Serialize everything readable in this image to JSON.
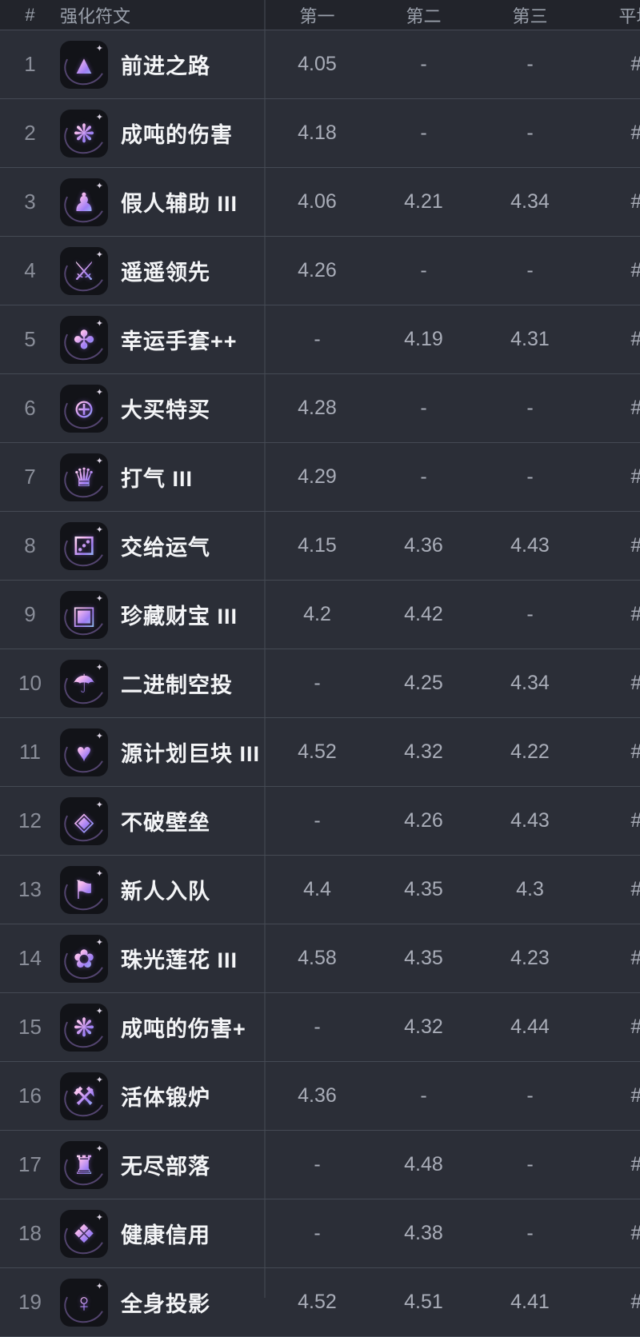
{
  "colors": {
    "background": "#2b2e37",
    "header_background": "#22242b",
    "row_divider": "#454a54",
    "icon_tile": "#121318",
    "name_text": "#f4f5f7",
    "value_text": "#a9adb8",
    "rank_text": "#8a8e99",
    "holo_gradient": [
      "#ffffff",
      "#f3b6ee",
      "#a07ef5",
      "#8fd4f2"
    ]
  },
  "table": {
    "columns": {
      "rank": "#",
      "name": "强化符文",
      "first": "第一",
      "second": "第二",
      "third": "第三",
      "avg": "平均"
    },
    "rows": [
      {
        "rank": "1",
        "name": "前进之路",
        "icon": "arrow-up-circle",
        "glyph": "▲",
        "first": "4.05",
        "second": "-",
        "third": "-",
        "avg": "#"
      },
      {
        "rank": "2",
        "name": "成吨的伤害",
        "icon": "damage-swirl",
        "glyph": "❋",
        "first": "4.18",
        "second": "-",
        "third": "-",
        "avg": "#"
      },
      {
        "rank": "3",
        "name": "假人辅助 III",
        "icon": "training-dummy",
        "glyph": "♟",
        "first": "4.06",
        "second": "4.21",
        "third": "4.34",
        "avg": "#"
      },
      {
        "rank": "4",
        "name": "遥遥领先",
        "icon": "head-start-bag",
        "glyph": "⚔",
        "first": "4.26",
        "second": "-",
        "third": "-",
        "avg": "#"
      },
      {
        "rank": "5",
        "name": "幸运手套++",
        "icon": "lucky-paw",
        "glyph": "✤",
        "first": "-",
        "second": "4.19",
        "third": "4.31",
        "avg": "#"
      },
      {
        "rank": "6",
        "name": "大买特买",
        "icon": "coin-plus",
        "glyph": "⊕",
        "first": "4.28",
        "second": "-",
        "third": "-",
        "avg": "#"
      },
      {
        "rank": "7",
        "name": "打气 III",
        "icon": "crown-burst",
        "glyph": "♛",
        "first": "4.29",
        "second": "-",
        "third": "-",
        "avg": "#"
      },
      {
        "rank": "8",
        "name": "交给运气",
        "icon": "lucky-dice",
        "glyph": "⚂",
        "first": "4.15",
        "second": "4.36",
        "third": "4.43",
        "avg": "#"
      },
      {
        "rank": "9",
        "name": "珍藏财宝 III",
        "icon": "mystery-box",
        "glyph": "▣",
        "first": "4.2",
        "second": "4.42",
        "third": "-",
        "avg": "#"
      },
      {
        "rank": "10",
        "name": "二进制空投",
        "icon": "parachute-drop",
        "glyph": "☂",
        "first": "-",
        "second": "4.25",
        "third": "4.34",
        "avg": "#"
      },
      {
        "rank": "11",
        "name": "源计划巨块 III",
        "icon": "heart-cube",
        "glyph": "♥",
        "first": "4.52",
        "second": "4.32",
        "third": "4.22",
        "avg": "#"
      },
      {
        "rank": "12",
        "name": "不破壁垒",
        "icon": "double-shield",
        "glyph": "◈",
        "first": "-",
        "second": "4.26",
        "third": "4.43",
        "avg": "#"
      },
      {
        "rank": "13",
        "name": "新人入队",
        "icon": "recruit-flag",
        "glyph": "⚑",
        "first": "4.4",
        "second": "4.35",
        "third": "4.3",
        "avg": "#"
      },
      {
        "rank": "14",
        "name": "珠光莲花 III",
        "icon": "pearl-lotus",
        "glyph": "✿",
        "first": "4.58",
        "second": "4.35",
        "third": "4.23",
        "avg": "#"
      },
      {
        "rank": "15",
        "name": "成吨的伤害+",
        "icon": "damage-swirl-plus",
        "glyph": "❋",
        "first": "-",
        "second": "4.32",
        "third": "4.44",
        "avg": "#"
      },
      {
        "rank": "16",
        "name": "活体锻炉",
        "icon": "living-anvil",
        "glyph": "⚒",
        "first": "4.36",
        "second": "-",
        "third": "-",
        "avg": "#"
      },
      {
        "rank": "17",
        "name": "无尽部落",
        "icon": "horde-helmet",
        "glyph": "♜",
        "first": "-",
        "second": "4.48",
        "third": "-",
        "avg": "#"
      },
      {
        "rank": "18",
        "name": "健康信用",
        "icon": "money-bag-wand",
        "glyph": "❖",
        "first": "-",
        "second": "4.38",
        "third": "-",
        "avg": "#"
      },
      {
        "rank": "19",
        "name": "全身投影",
        "icon": "silhouette-figure",
        "glyph": "♀",
        "first": "4.52",
        "second": "4.51",
        "third": "4.41",
        "avg": "#"
      }
    ]
  }
}
